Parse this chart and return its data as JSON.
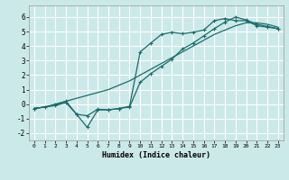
{
  "xlabel": "Humidex (Indice chaleur)",
  "xlim": [
    -0.5,
    23.5
  ],
  "ylim": [
    -2.5,
    6.8
  ],
  "xticks": [
    0,
    1,
    2,
    3,
    4,
    5,
    6,
    7,
    8,
    9,
    10,
    11,
    12,
    13,
    14,
    15,
    16,
    17,
    18,
    19,
    20,
    21,
    22,
    23
  ],
  "yticks": [
    -2,
    -1,
    0,
    1,
    2,
    3,
    4,
    5,
    6
  ],
  "bg_color": "#cce9e9",
  "grid_color": "#ffffff",
  "line_color": "#1a6b6b",
  "line1_x": [
    0,
    1,
    2,
    3,
    4,
    5,
    6,
    7,
    8,
    9,
    10,
    11,
    12,
    13,
    14,
    15,
    16,
    17,
    18,
    19,
    20,
    21,
    22,
    23
  ],
  "line1_y": [
    -0.3,
    -0.2,
    0.0,
    0.2,
    0.4,
    0.6,
    0.8,
    1.0,
    1.3,
    1.6,
    2.0,
    2.4,
    2.8,
    3.2,
    3.6,
    4.0,
    4.4,
    4.8,
    5.1,
    5.4,
    5.6,
    5.6,
    5.5,
    5.3
  ],
  "line2_x": [
    0,
    1,
    2,
    3,
    4,
    5,
    6,
    7,
    8,
    9,
    10,
    11,
    12,
    13,
    14,
    15,
    16,
    17,
    18,
    19,
    20,
    21,
    22,
    23
  ],
  "line2_y": [
    -0.3,
    -0.2,
    -0.05,
    0.2,
    -0.7,
    -0.8,
    -0.35,
    -0.4,
    -0.3,
    -0.15,
    3.6,
    4.2,
    4.8,
    4.95,
    4.85,
    4.95,
    5.1,
    5.75,
    5.9,
    5.75,
    5.75,
    5.4,
    5.3,
    5.2
  ],
  "line3_x": [
    0,
    2,
    3,
    4,
    5,
    6,
    7,
    8,
    9,
    10,
    11,
    12,
    13,
    14,
    15,
    16,
    17,
    18,
    19,
    20,
    21,
    22,
    23
  ],
  "line3_y": [
    -0.3,
    -0.1,
    0.1,
    -0.7,
    -1.6,
    -0.4,
    -0.4,
    -0.3,
    -0.2,
    1.5,
    2.1,
    2.6,
    3.1,
    3.8,
    4.2,
    4.7,
    5.2,
    5.65,
    6.0,
    5.8,
    5.5,
    5.35,
    5.2
  ]
}
